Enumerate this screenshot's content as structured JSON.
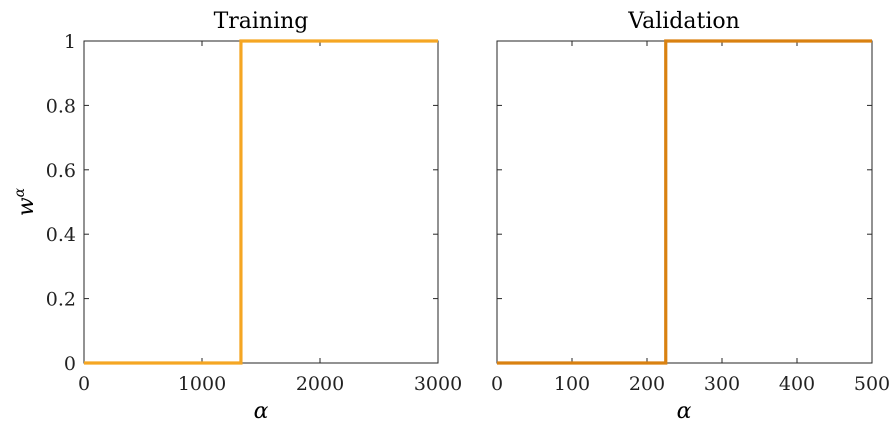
{
  "chart_data": [
    {
      "type": "line",
      "title": "Training",
      "xlabel": "α",
      "ylabel": "w",
      "ylabel_superscript": "α",
      "xlim": [
        0,
        3000
      ],
      "ylim": [
        0,
        1
      ],
      "xticks": [
        0,
        1000,
        2000,
        3000
      ],
      "yticks": [
        0,
        0.2,
        0.4,
        0.6,
        0.8,
        1
      ],
      "ytick_labels": [
        "0",
        "0.2",
        "0.4",
        "0.6",
        "0.8",
        "1"
      ],
      "show_yticklabels": true,
      "grid": false,
      "color": "#f5a623",
      "series": [
        {
          "x": [
            0,
            1330,
            1330,
            3000
          ],
          "y": [
            0,
            0,
            1,
            1
          ]
        }
      ]
    },
    {
      "type": "line",
      "title": "Validation",
      "xlabel": "α",
      "xlim": [
        0,
        500
      ],
      "ylim": [
        0,
        1
      ],
      "xticks": [
        0,
        100,
        200,
        300,
        400,
        500
      ],
      "yticks": [
        0,
        0.2,
        0.4,
        0.6,
        0.8,
        1
      ],
      "show_yticklabels": false,
      "grid": false,
      "color": "#d98110",
      "series": [
        {
          "x": [
            0,
            225,
            225,
            500
          ],
          "y": [
            0,
            0,
            1,
            1
          ]
        }
      ]
    }
  ]
}
